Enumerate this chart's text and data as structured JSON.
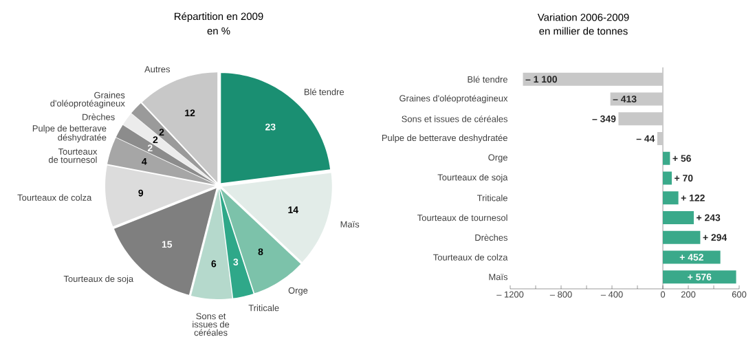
{
  "chart_data": [
    {
      "type": "pie",
      "title": "Répartition en 2009",
      "subtitle": "en %",
      "categories": [
        "Blé tendre",
        "Maïs",
        "Orge",
        "Triticale",
        "Sons et issues de céréales",
        "Tourteaux de soja",
        "Tourteaux de colza",
        "Tourteaux de tournesol",
        "Pulpe de betterave déshydratée",
        "Drèches",
        "Graines d'oléoprotéagineux",
        "Autres"
      ],
      "values": [
        23,
        14,
        8,
        3,
        6,
        15,
        9,
        4,
        2,
        2,
        2,
        12
      ],
      "colors": [
        "#1a8f72",
        "#e2ece8",
        "#7cc2aa",
        "#2fa889",
        "#b5d9cc",
        "#7f7f7f",
        "#dcdcdc",
        "#a6a6a6",
        "#8c8c8c",
        "#ececec",
        "#9a9a9a",
        "#c8c8c8"
      ],
      "data_labels": true
    },
    {
      "type": "bar",
      "orientation": "horizontal",
      "title": "Variation 2006-2009",
      "subtitle": "en millier de tonnes",
      "categories": [
        "Blé tendre",
        "Graines d'oléoprotéagineux",
        "Sons et issues de céréales",
        "Pulpe de betterave deshydratée",
        "Orge",
        "Tourteaux de soja",
        "Triticale",
        "Tourteaux de tournesol",
        "Drèches",
        "Tourteaux de colza",
        "Maïs"
      ],
      "values": [
        -1100,
        -413,
        -349,
        -44,
        56,
        70,
        122,
        243,
        294,
        452,
        576
      ],
      "colors": [
        "#c8c8c8",
        "#c8c8c8",
        "#c8c8c8",
        "#c8c8c8",
        "#3aa98a",
        "#3aa98a",
        "#3aa98a",
        "#3aa98a",
        "#3aa98a",
        "#3aa98a",
        "#3aa98a"
      ],
      "value_labels": [
        "– 1 100",
        "– 413",
        "– 349",
        "– 44",
        "+ 56",
        "+ 70",
        "+ 122",
        "+ 243",
        "+ 294",
        "+ 452",
        "+ 576"
      ],
      "xlim": [
        -1200,
        600
      ],
      "xticks": [
        {
          "value": -1200,
          "label": "– 1200"
        },
        {
          "value": -1000,
          "label": null
        },
        {
          "value": -800,
          "label": "– 800"
        },
        {
          "value": -600,
          "label": null
        },
        {
          "value": -400,
          "label": "– 400"
        },
        {
          "value": -200,
          "label": null
        },
        0,
        200,
        {
          "value": 400,
          "label": null
        },
        600
      ]
    }
  ]
}
